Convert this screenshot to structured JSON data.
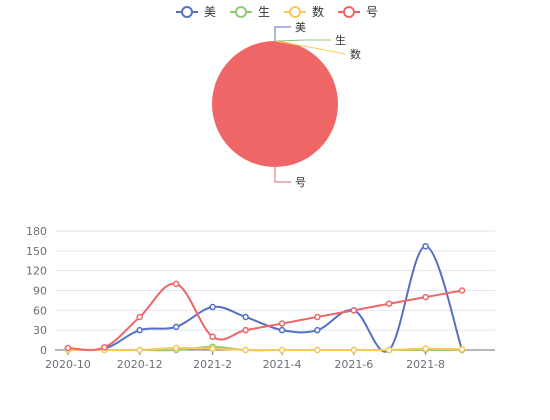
{
  "chart_data": [
    {
      "type": "pie",
      "slices": [
        {
          "name": "美",
          "value": 0,
          "color": "#5470c6"
        },
        {
          "name": "生",
          "value": 0,
          "color": "#91cc75"
        },
        {
          "name": "数",
          "value": 0,
          "color": "#fac858"
        },
        {
          "name": "号",
          "value": 100,
          "color": "#ee6666"
        }
      ]
    },
    {
      "type": "line",
      "x": [
        "2020-10-01",
        "2020-11-01",
        "2020-12-01",
        "2021-01-01",
        "2021-02-01",
        "2021-03-01",
        "2021-04-01",
        "2021-05-01",
        "2021-06-01",
        "2021-07-01",
        "2021-08-01",
        "2021-09-01"
      ],
      "xticks": [
        "2020-10",
        "2020-12",
        "2021-2",
        "2021-4",
        "2021-6",
        "2021-8"
      ],
      "xtick_dates": [
        "2020-10-01",
        "2020-12-01",
        "2021-02-01",
        "2021-04-01",
        "2021-06-01",
        "2021-08-01"
      ],
      "xlim": [
        "2020-09-20",
        "2021-09-29"
      ],
      "ylim": [
        0,
        180
      ],
      "yticks": [
        0,
        30,
        60,
        90,
        120,
        150,
        180
      ],
      "grid": true,
      "series": [
        {
          "name": "美",
          "color": "#5470c6",
          "values": [
            2,
            2,
            30,
            35,
            65,
            50,
            30,
            30,
            60,
            0,
            157,
            0
          ]
        },
        {
          "name": "生",
          "color": "#91cc75",
          "values": [
            0,
            0,
            0,
            0,
            5,
            0,
            0,
            0,
            0,
            0,
            0,
            0
          ]
        },
        {
          "name": "数",
          "color": "#fac858",
          "values": [
            0,
            0,
            0,
            3,
            2,
            0,
            0,
            0,
            0,
            0,
            2,
            1
          ]
        },
        {
          "name": "号",
          "color": "#ee6666",
          "values": [
            3,
            4,
            50,
            100,
            20,
            30,
            40,
            50,
            60,
            70,
            80,
            90
          ]
        }
      ]
    }
  ],
  "legend": {
    "placement": "top-center",
    "items": [
      {
        "name": "美",
        "color": "#5470c6"
      },
      {
        "name": "生",
        "color": "#91cc75"
      },
      {
        "name": "数",
        "color": "#fac858"
      },
      {
        "name": "号",
        "color": "#ee6666"
      }
    ]
  }
}
